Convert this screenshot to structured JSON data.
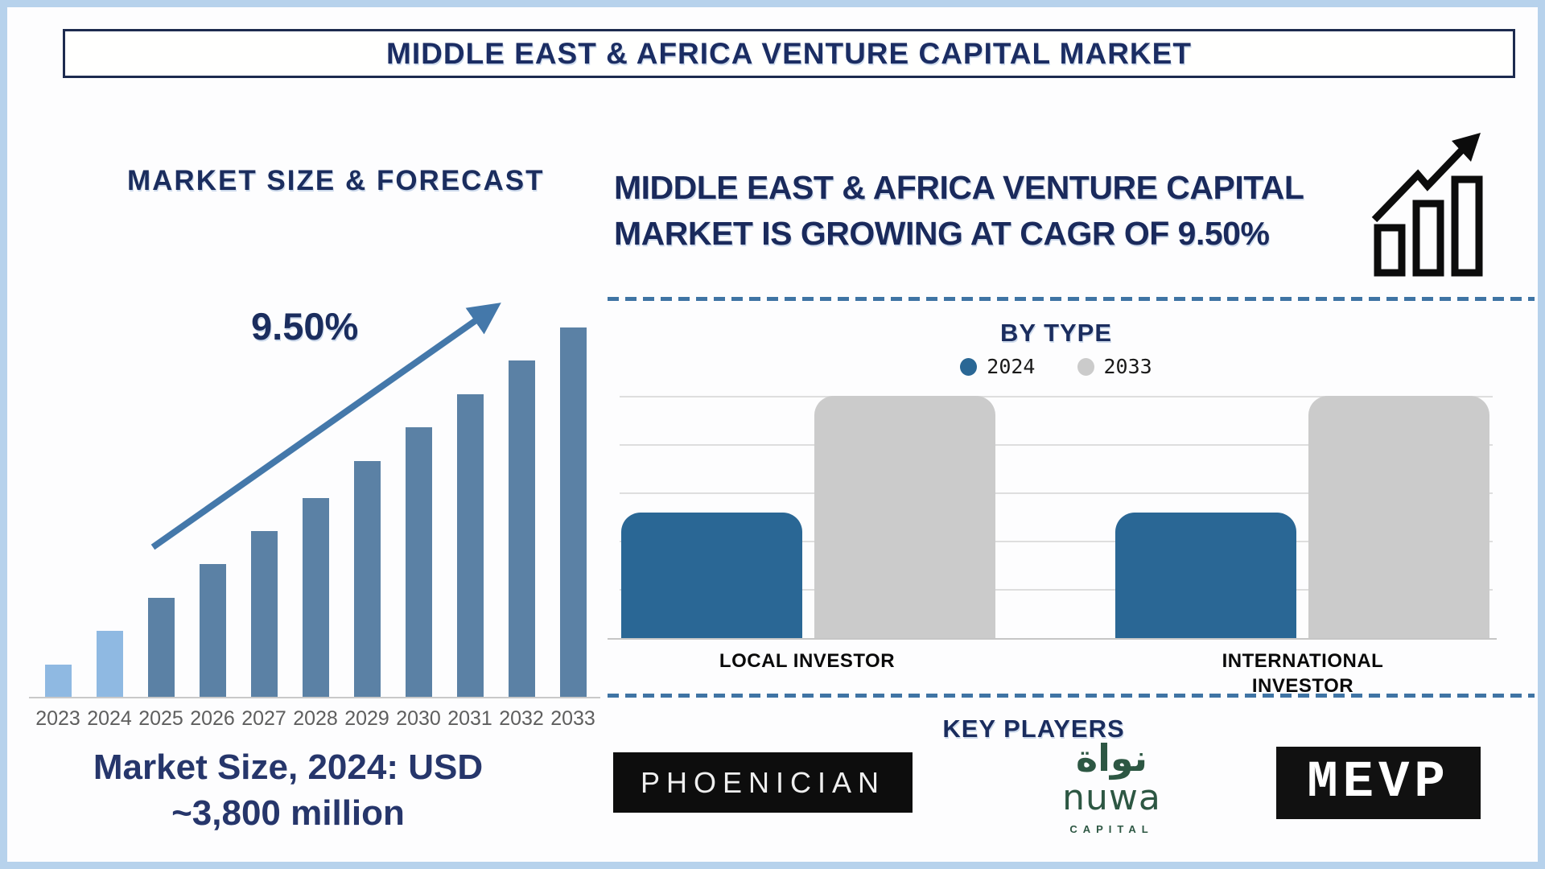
{
  "page": {
    "title": "MIDDLE EAST & AFRICA VENTURE CAPITAL MARKET"
  },
  "colors": {
    "navy_text": "#1b2d5e",
    "frame_blue": "#b7d2ec",
    "arrow_blue": "#4478aa",
    "forecast_bar_light": "#8fb9e2",
    "forecast_bar_dark": "#5b81a5",
    "series_2024_blue": "#2a6795",
    "series_2033_gray": "#cbcbcb",
    "nuwa_green": "#2d5743"
  },
  "left_panel": {
    "section_title": "MARKET SIZE & FORECAST",
    "cagr_label": "9.50%",
    "market_size_line1": "Market Size, 2024: USD",
    "market_size_line2": "~3,800 million"
  },
  "right_panel": {
    "headline_line1": "MIDDLE EAST & AFRICA VENTURE CAPITAL",
    "headline_line2": "MARKET IS GROWING AT CAGR OF 9.50%",
    "by_type_title": "BY TYPE",
    "key_players_title": "KEY PLAYERS"
  },
  "logos": {
    "phoenician_text": "PHOENICIAN",
    "nuwa_arabic": "نواة",
    "nuwa_name": "nuwa",
    "nuwa_sub": "CAPITAL",
    "mevp_text": "MEVP"
  },
  "chart_data": [
    {
      "type": "bar",
      "title": "MARKET SIZE & FORECAST",
      "categories": [
        "2023",
        "2024",
        "2025",
        "2026",
        "2027",
        "2028",
        "2029",
        "2030",
        "2031",
        "2032",
        "2033"
      ],
      "values": [
        9,
        18,
        27,
        36,
        45,
        54,
        64,
        73,
        82,
        91,
        100
      ],
      "values_note": "no numeric y-axis shown; values are % of tallest (2033) bar",
      "bar_colors": [
        "#8fb9e2",
        "#8fb9e2",
        "#5b81a5",
        "#5b81a5",
        "#5b81a5",
        "#5b81a5",
        "#5b81a5",
        "#5b81a5",
        "#5b81a5",
        "#5b81a5",
        "#5b81a5"
      ],
      "annotations": [
        "9.50%",
        "Market Size, 2024: USD ~3,800 million"
      ],
      "xlabel": "",
      "ylabel": "",
      "grid": false
    },
    {
      "type": "bar",
      "title": "BY TYPE",
      "categories": [
        "LOCAL INVESTOR",
        "INTERNATIONAL INVESTOR"
      ],
      "series": [
        {
          "name": "2024",
          "values": [
            52,
            52
          ],
          "color": "#2a6795"
        },
        {
          "name": "2033",
          "values": [
            100,
            100
          ],
          "color": "#cbcbcb"
        }
      ],
      "values_note": "no numeric y-axis shown; values are % of tallest (2033) bars",
      "ylim": [
        0,
        100
      ],
      "grid": true,
      "legend_position": "top"
    }
  ]
}
